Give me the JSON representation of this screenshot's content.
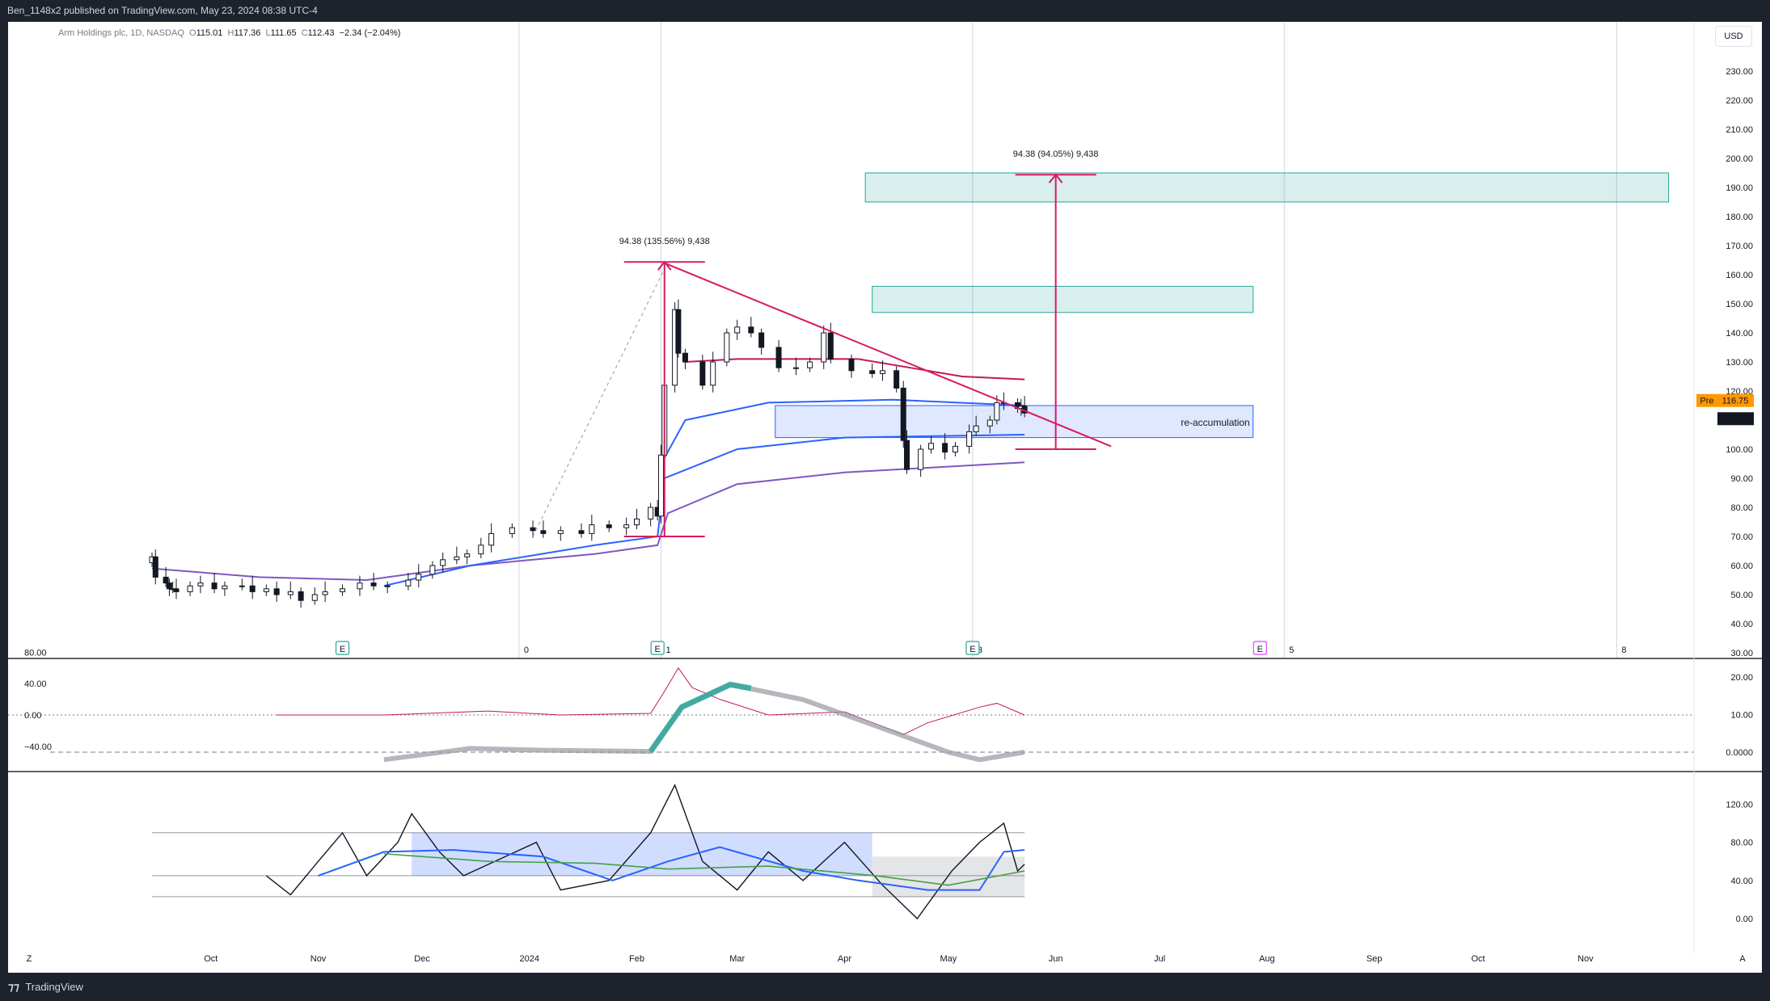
{
  "header": {
    "published_text": "Ben_1148x2 published on TradingView.com, May 23, 2024 08:38 UTC-4"
  },
  "legend": {
    "symbol": "Arm Holdings plc, 1D, NASDAQ",
    "o_label": "O",
    "o": "115.01",
    "h_label": "H",
    "h": "117.36",
    "l_label": "L",
    "l": "111.65",
    "c_label": "C",
    "c": "112.43",
    "change": "−2.34 (−2.04%)"
  },
  "currency_button": "USD",
  "footer": {
    "brand": "TradingView",
    "z_label": "Z",
    "a_label": "A"
  },
  "colors": {
    "candle_up_border": "#131722",
    "candle_down": "#131722",
    "vwap_blue": "#2962ff",
    "purple_band": "#7e57c2",
    "crimson_band": "#c2185b",
    "trendline": "#d81b60",
    "target_box": "#26a69a",
    "reaccum_box": "#2962ff",
    "pre_badge": "#ff9800",
    "osc_fill_up": "#26a69a",
    "osc_fill_down": "#9598a1"
  },
  "annotations": {
    "measure_left": "94.38 (135.56%) 9,438",
    "measure_right": "94.38 (94.05%) 9,438",
    "reaccum_label": "re-accumulation",
    "pre_badge": "Pre",
    "pre_price": "116.75",
    "last_price": "112.43",
    "earnings_marker": "E",
    "session_marks": [
      "0",
      "1",
      "3",
      "5",
      "8"
    ]
  },
  "chart_data": [
    {
      "type": "candlestick",
      "title": "Arm Holdings plc, 1D, NASDAQ",
      "xlabel": "",
      "ylabel": "",
      "ylim": [
        30,
        235
      ],
      "y_ticks": [
        "230.00",
        "220.00",
        "210.00",
        "200.00",
        "190.00",
        "180.00",
        "170.00",
        "160.00",
        "150.00",
        "140.00",
        "130.00",
        "120.00",
        "110.00",
        "100.00",
        "90.00",
        "80.00",
        "70.00",
        "60.00",
        "50.00",
        "40.00",
        "30.00"
      ],
      "x_ticks": [
        "Oct",
        "Nov",
        "Dec",
        "2024",
        "Feb",
        "Mar",
        "Apr",
        "May",
        "Jun",
        "Jul",
        "Aug",
        "Sep",
        "Oct",
        "Nov"
      ],
      "close_series": [
        [
          "2023-09-14",
          63
        ],
        [
          "2023-09-15",
          56
        ],
        [
          "2023-09-18",
          54
        ],
        [
          "2023-09-19",
          52
        ],
        [
          "2023-09-20",
          52
        ],
        [
          "2023-09-21",
          51
        ],
        [
          "2023-09-25",
          53
        ],
        [
          "2023-09-28",
          54
        ],
        [
          "2023-10-02",
          52
        ],
        [
          "2023-10-05",
          53
        ],
        [
          "2023-10-10",
          53
        ],
        [
          "2023-10-13",
          51
        ],
        [
          "2023-10-17",
          52
        ],
        [
          "2023-10-20",
          50
        ],
        [
          "2023-10-24",
          51
        ],
        [
          "2023-10-27",
          48
        ],
        [
          "2023-10-31",
          50
        ],
        [
          "2023-11-03",
          51
        ],
        [
          "2023-11-08",
          52
        ],
        [
          "2023-11-13",
          54
        ],
        [
          "2023-11-17",
          53
        ],
        [
          "2023-11-21",
          53
        ],
        [
          "2023-11-27",
          55
        ],
        [
          "2023-11-30",
          57
        ],
        [
          "2023-12-04",
          60
        ],
        [
          "2023-12-07",
          62
        ],
        [
          "2023-12-11",
          63
        ],
        [
          "2023-12-14",
          64
        ],
        [
          "2023-12-18",
          67
        ],
        [
          "2023-12-21",
          71
        ],
        [
          "2023-12-27",
          73
        ],
        [
          "2024-01-02",
          72
        ],
        [
          "2024-01-05",
          71
        ],
        [
          "2024-01-10",
          72
        ],
        [
          "2024-01-16",
          71
        ],
        [
          "2024-01-19",
          74
        ],
        [
          "2024-01-24",
          73
        ],
        [
          "2024-01-29",
          74
        ],
        [
          "2024-02-01",
          76
        ],
        [
          "2024-02-05",
          80
        ],
        [
          "2024-02-07",
          77
        ],
        [
          "2024-02-08",
          98
        ],
        [
          "2024-02-09",
          122
        ],
        [
          "2024-02-12",
          148
        ],
        [
          "2024-02-13",
          133
        ],
        [
          "2024-02-15",
          130
        ],
        [
          "2024-02-20",
          122
        ],
        [
          "2024-02-23",
          130
        ],
        [
          "2024-02-27",
          140
        ],
        [
          "2024-03-01",
          142
        ],
        [
          "2024-03-05",
          140
        ],
        [
          "2024-03-08",
          135
        ],
        [
          "2024-03-13",
          128
        ],
        [
          "2024-03-18",
          128
        ],
        [
          "2024-03-22",
          130
        ],
        [
          "2024-03-26",
          140
        ],
        [
          "2024-03-28",
          131
        ],
        [
          "2024-04-03",
          127
        ],
        [
          "2024-04-09",
          126
        ],
        [
          "2024-04-12",
          127
        ],
        [
          "2024-04-16",
          121
        ],
        [
          "2024-04-18",
          103
        ],
        [
          "2024-04-19",
          93
        ],
        [
          "2024-04-23",
          100
        ],
        [
          "2024-04-26",
          102
        ],
        [
          "2024-04-30",
          99
        ],
        [
          "2024-05-03",
          101
        ],
        [
          "2024-05-07",
          106
        ],
        [
          "2024-05-09",
          108
        ],
        [
          "2024-05-13",
          110
        ],
        [
          "2024-05-15",
          116
        ],
        [
          "2024-05-17",
          116
        ],
        [
          "2024-05-21",
          114
        ],
        [
          "2024-05-22",
          114.8
        ],
        [
          "2024-05-23",
          112.43
        ]
      ],
      "series_visible": [
        "VWAP (blue)",
        "lower band (purple)",
        "upper band (crimson)"
      ],
      "zones": [
        {
          "label": "",
          "y_range": [
            185,
            195
          ],
          "kind": "target"
        },
        {
          "label": "",
          "y_range": [
            147,
            156
          ],
          "kind": "target"
        },
        {
          "label": "re-accumulation",
          "y_range": [
            104,
            115
          ],
          "kind": "support"
        }
      ],
      "measurements": [
        {
          "label": "94.38 (135.56%) 9,438",
          "from": [
            "2024-02-09",
            70
          ],
          "to": [
            "2024-02-09",
            164.38
          ]
        },
        {
          "label": "94.38 (94.05%) 9,438",
          "from": [
            "2024-06-01",
            100
          ],
          "to": [
            "2024-06-01",
            194.38
          ]
        }
      ],
      "trendline": {
        "from": [
          "2024-02-09",
          164
        ],
        "to": [
          "2024-06-17",
          101
        ]
      }
    },
    {
      "type": "line",
      "title": "",
      "y_ticks_left": [
        "80.00",
        "40.00",
        "0.00",
        "−40.00"
      ],
      "y_ticks_right": [
        "20.00",
        "10.00",
        "0.0000"
      ],
      "series": [
        {
          "values_desc": "thin crimson oscillator near 0, spike to ~60 in Feb"
        },
        {
          "values_desc": "smoothed oscillator peaking ~23 mid-Feb, bottoming ~-3 early May"
        }
      ]
    },
    {
      "type": "line",
      "title": "",
      "y_ticks": [
        "120.00",
        "80.00",
        "40.00",
        "0.00"
      ],
      "levels": [
        90,
        45,
        23
      ],
      "series": [
        {
          "values_desc": "black oscillator between 0 and 140"
        },
        {
          "values_desc": "blue smoothed signal"
        },
        {
          "values_desc": "green smoothed signal"
        }
      ]
    }
  ]
}
